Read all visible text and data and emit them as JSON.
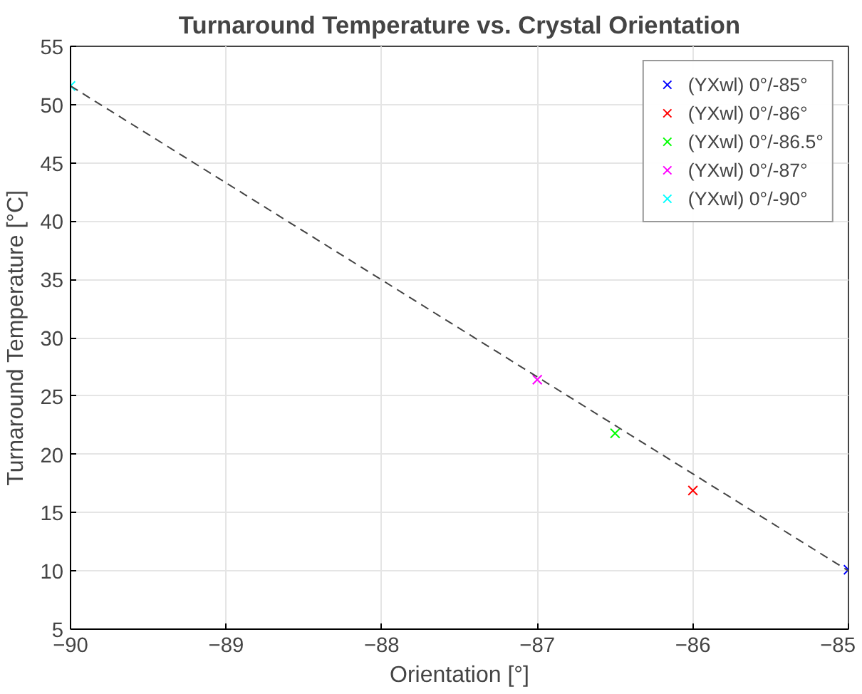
{
  "chart_data": {
    "type": "scatter",
    "title": "Turnaround Temperature vs. Crystal Orientation",
    "xlabel": "Orientation [°]",
    "ylabel": "Turnaround Temperature [°C]",
    "xlim": [
      -90,
      -85
    ],
    "ylim": [
      5,
      55
    ],
    "xticks": [
      -90,
      -89,
      -88,
      -87,
      -86,
      -85
    ],
    "yticks": [
      5,
      10,
      15,
      20,
      25,
      30,
      35,
      40,
      45,
      50,
      55
    ],
    "grid": true,
    "legend": "top right",
    "marker": "cross",
    "series": [
      {
        "name": "(YXwl) 0°/-85°",
        "color": "#0000ff",
        "x": [
          -85
        ],
        "values": [
          10.1
        ]
      },
      {
        "name": "(YXwl) 0°/-86°",
        "color": "#ff0000",
        "x": [
          -86
        ],
        "values": [
          16.9
        ]
      },
      {
        "name": "(YXwl) 0°/-86.5°",
        "color": "#00ff00",
        "x": [
          -86.5
        ],
        "values": [
          21.8
        ]
      },
      {
        "name": "(YXwl) 0°/-87°",
        "color": "#ff00ff",
        "x": [
          -87
        ],
        "values": [
          26.4
        ]
      },
      {
        "name": "(YXwl) 0°/-90°",
        "color": "#00ffff",
        "x": [
          -90
        ],
        "values": [
          51.6
        ]
      },
      {
        "type": "line",
        "color": "#444444",
        "line_style": "dashed",
        "marker": "none",
        "x": [
          -90,
          -85
        ],
        "values": [
          51.6,
          10.0
        ]
      }
    ]
  }
}
